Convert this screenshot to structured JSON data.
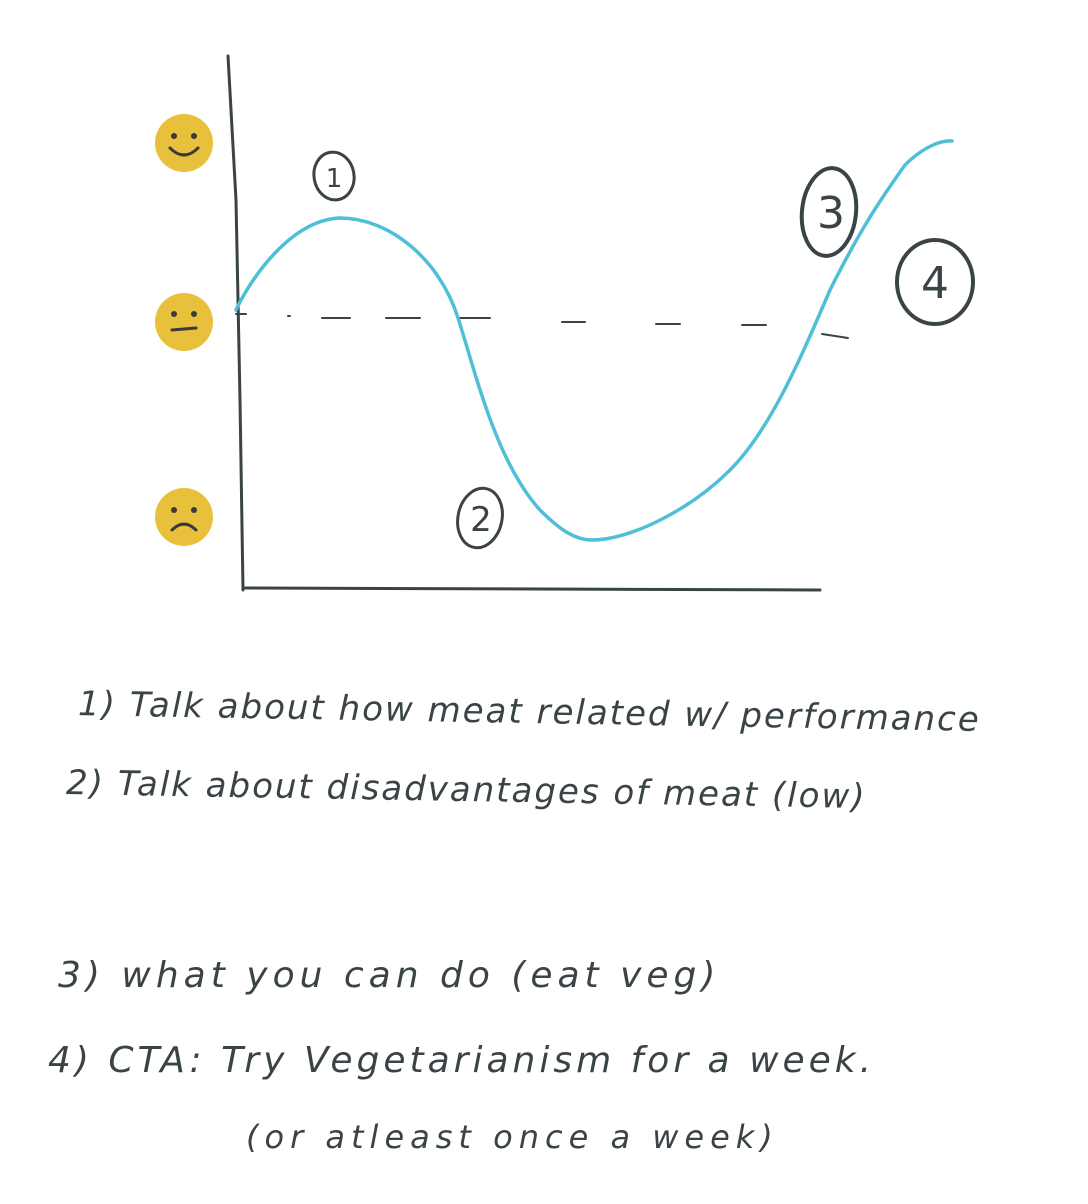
{
  "colors": {
    "ink": "#3a4446",
    "curve": "#4fbfd8",
    "emoji": "#e8c03c",
    "emoji_face": "#3a3a3a"
  },
  "emojis": [
    {
      "name": "happy-face-icon",
      "mood": "happy"
    },
    {
      "name": "neutral-face-icon",
      "mood": "neutral"
    },
    {
      "name": "sad-face-icon",
      "mood": "sad"
    }
  ],
  "markers": {
    "m1": "1",
    "m2": "2",
    "m3": "3",
    "m4": "4"
  },
  "notes": {
    "line1": "1) Talk about how meat related w/ performance",
    "line2": "2) Talk about disadvantages of meat (low)",
    "line3": "3) what you can do (eat veg)",
    "line4": "4) CTA: Try Vegetarianism for a week.",
    "line5": "(or atleast once a week)"
  }
}
